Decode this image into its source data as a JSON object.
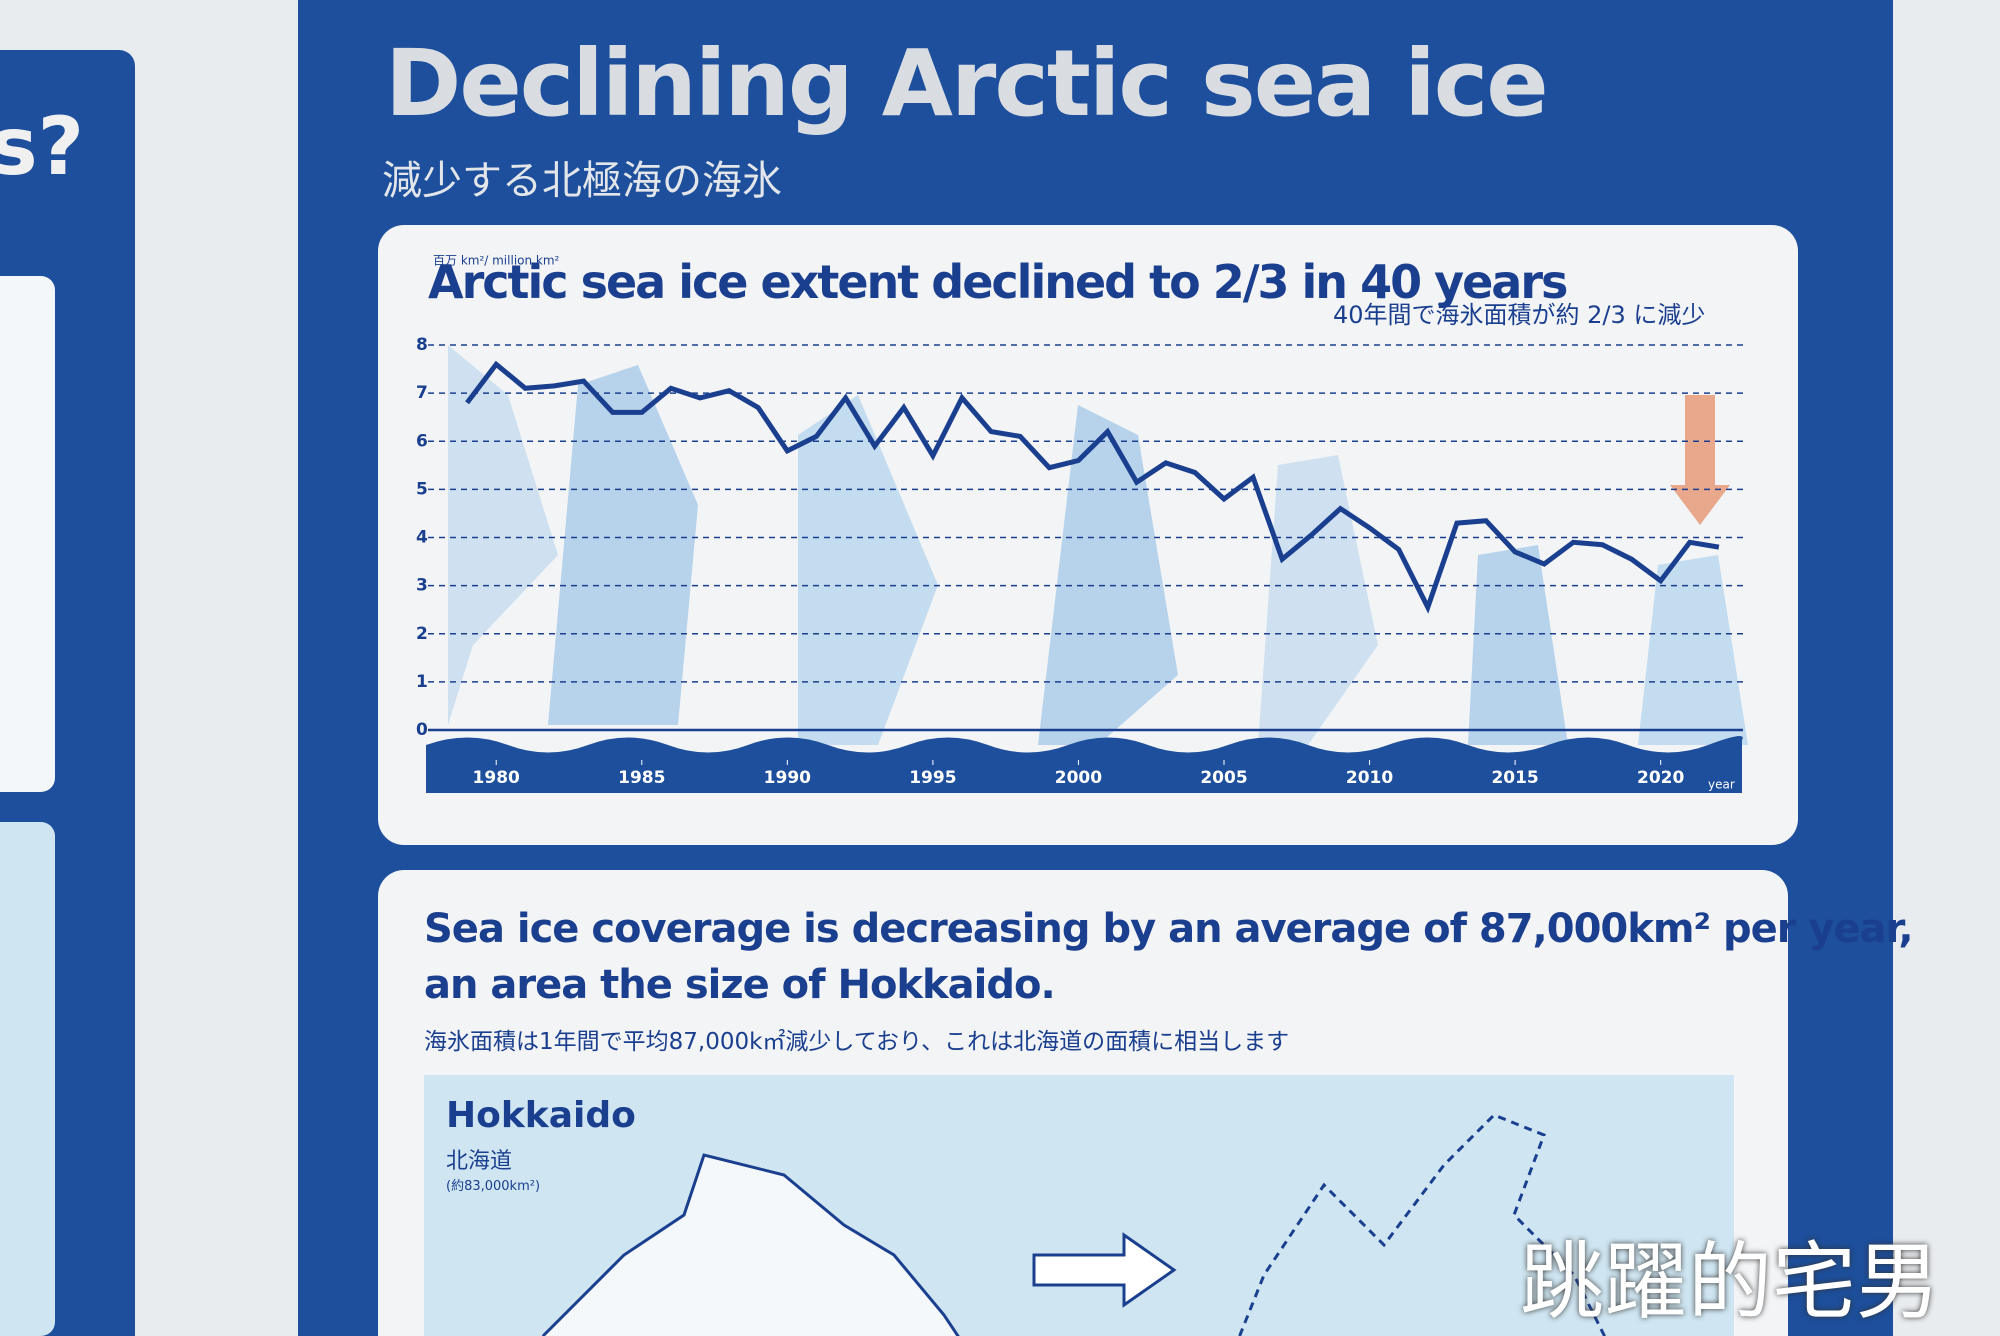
{
  "panel": {
    "title": "Declining Arctic sea ice",
    "subtitle": "減少する北極海の海氷",
    "side_text": "s?"
  },
  "chart_data": {
    "type": "line",
    "title": "Arctic sea ice extent declined to 2/3 in 40 years",
    "subtitle": "40年間で海氷面積が約 2/3 に減少",
    "y_label": "百万 km²/ million km²",
    "x_label": "year",
    "color": "#1b3f8f",
    "grid": true,
    "x": [
      1979,
      1980,
      1981,
      1982,
      1983,
      1984,
      1985,
      1986,
      1987,
      1988,
      1989,
      1990,
      1991,
      1992,
      1993,
      1994,
      1995,
      1996,
      1997,
      1998,
      1999,
      2000,
      2001,
      2002,
      2003,
      2004,
      2005,
      2006,
      2007,
      2008,
      2009,
      2010,
      2011,
      2012,
      2013,
      2014,
      2015,
      2016,
      2017,
      2018,
      2019,
      2020,
      2021,
      2022
    ],
    "values": [
      6.8,
      7.6,
      7.1,
      7.15,
      7.25,
      6.6,
      6.6,
      7.1,
      6.9,
      7.05,
      6.7,
      5.8,
      6.1,
      6.9,
      5.9,
      6.7,
      5.7,
      6.9,
      6.2,
      6.1,
      5.45,
      5.6,
      6.2,
      5.15,
      5.55,
      5.35,
      4.8,
      5.25,
      3.55,
      4.05,
      4.6,
      4.2,
      3.75,
      2.55,
      4.3,
      4.35,
      3.7,
      3.45,
      3.9,
      3.85,
      3.55,
      3.1,
      3.9,
      3.8
    ],
    "xlim": [
      1978,
      2023
    ],
    "xticks": [
      1980,
      1985,
      1990,
      1995,
      2000,
      2005,
      2010,
      2015,
      2020
    ],
    "ylim": [
      0,
      8
    ],
    "yticks": [
      0,
      1,
      2,
      3,
      4,
      5,
      6,
      7,
      8
    ]
  },
  "info": {
    "title_lines": [
      "Sea ice coverage is decreasing by an average of 87,000km² per year,",
      "an area the size of Hokkaido."
    ],
    "subtitle": "海氷面積は1年間で平均87,000k㎡減少しており、これは北海道の面積に相当します",
    "map_title": "Hokkaido",
    "map_subtitle": "北海道",
    "map_note": "(約83,000km²)"
  },
  "watermark": "跳躍的宅男"
}
